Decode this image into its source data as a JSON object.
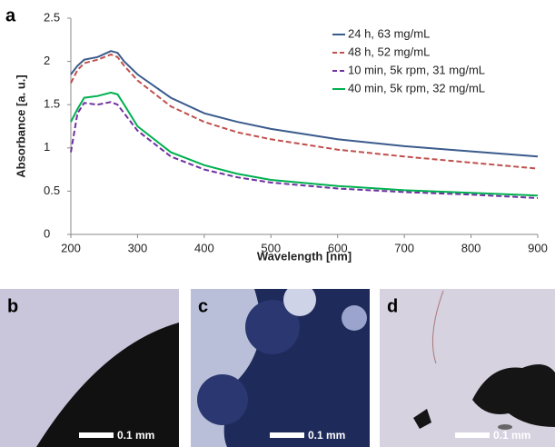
{
  "chart_data": {
    "type": "line",
    "panel_label": "a",
    "x_label": "Wavelength [nm]",
    "y_label": "Absorbance [a. u.]",
    "x": [
      200,
      210,
      220,
      240,
      260,
      270,
      280,
      300,
      350,
      400,
      450,
      500,
      600,
      700,
      800,
      900
    ],
    "series": [
      {
        "name": "24 h, 63 mg/mL",
        "color": "#3a5b8c",
        "dashed": false,
        "values": [
          1.85,
          1.95,
          2.02,
          2.05,
          2.12,
          2.1,
          2.0,
          1.85,
          1.58,
          1.4,
          1.3,
          1.22,
          1.1,
          1.02,
          0.96,
          0.9
        ]
      },
      {
        "name": "48 h, 52 mg/mL",
        "color": "#c0504d",
        "dashed": true,
        "values": [
          1.75,
          1.9,
          1.98,
          2.02,
          2.08,
          2.05,
          1.95,
          1.78,
          1.48,
          1.3,
          1.18,
          1.1,
          0.98,
          0.9,
          0.83,
          0.76
        ]
      },
      {
        "name": "10 min, 5k rpm, 31 mg/mL",
        "color": "#7030a0",
        "dashed": true,
        "values": [
          0.95,
          1.4,
          1.52,
          1.5,
          1.53,
          1.5,
          1.4,
          1.2,
          0.9,
          0.75,
          0.66,
          0.6,
          0.53,
          0.49,
          0.46,
          0.42
        ]
      },
      {
        "name": "40 min, 5k rpm, 32 mg/mL",
        "color": "#00b050",
        "dashed": false,
        "values": [
          1.3,
          1.45,
          1.58,
          1.6,
          1.64,
          1.62,
          1.5,
          1.25,
          0.95,
          0.8,
          0.7,
          0.63,
          0.56,
          0.51,
          0.48,
          0.45
        ]
      }
    ],
    "xlim": [
      200,
      900
    ],
    "xticks": [
      200,
      300,
      400,
      500,
      600,
      700,
      800,
      900
    ],
    "ylim": [
      0,
      2.5
    ],
    "yticks": [
      0,
      0.5,
      1,
      1.5,
      2,
      2.5
    ],
    "grid": false,
    "legend": "upper right"
  },
  "panels": [
    {
      "label": "b",
      "scale_bar": "0.1 mm"
    },
    {
      "label": "c",
      "scale_bar": "0.1 mm"
    },
    {
      "label": "d",
      "scale_bar": "0.1 mm"
    }
  ]
}
